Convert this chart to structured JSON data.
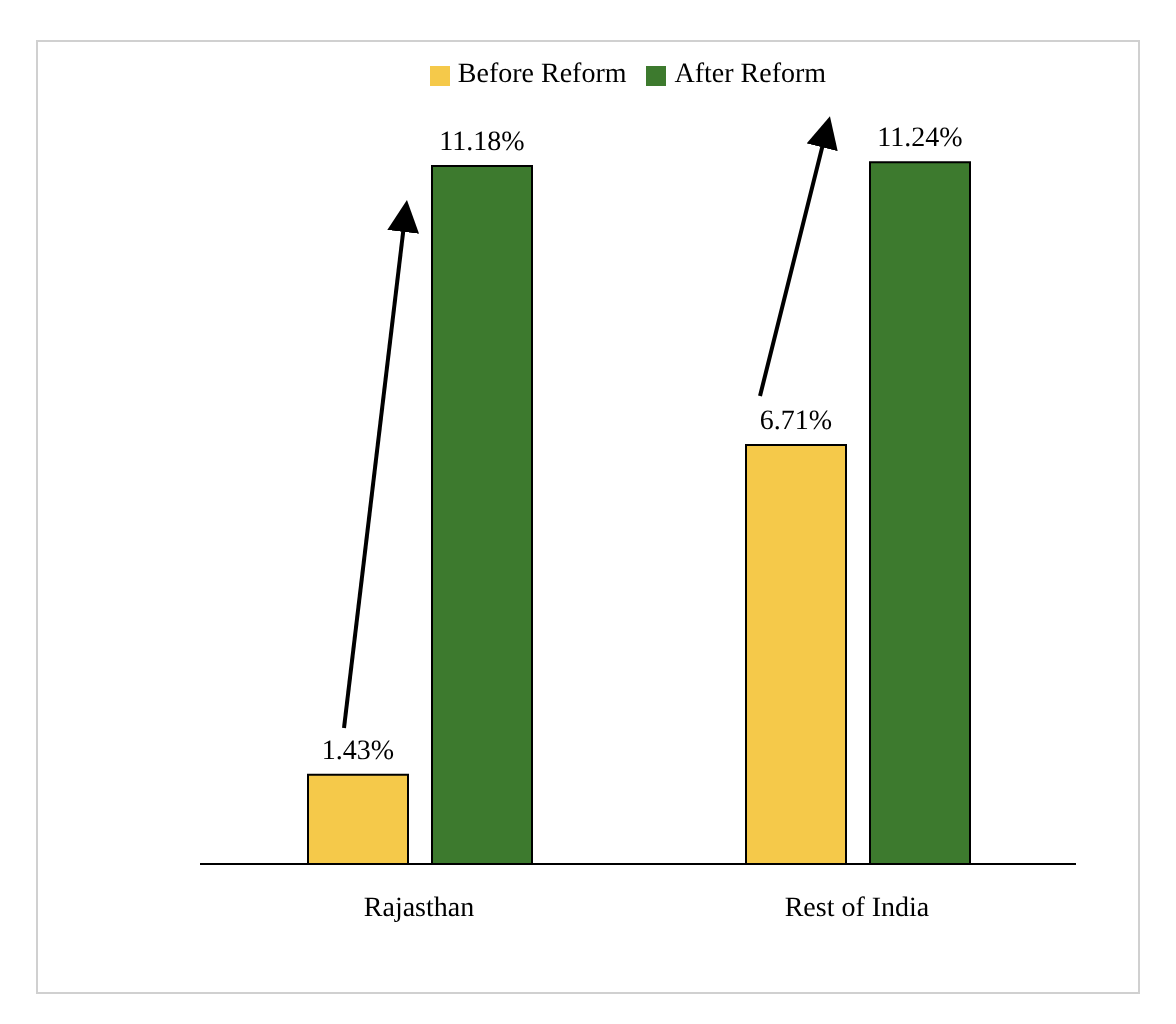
{
  "chart_data": {
    "type": "bar",
    "categories": [
      "Rajasthan",
      "Rest of India"
    ],
    "series": [
      {
        "name": "Before Reform",
        "color": "#f5c94a",
        "values": [
          1.43,
          6.71
        ],
        "value_labels": [
          "1.43%",
          "6.71%"
        ]
      },
      {
        "name": "After  Reform",
        "color": "#3d7a2e",
        "values": [
          11.18,
          11.24
        ],
        "value_labels": [
          "11.18%",
          "11.24%"
        ]
      }
    ],
    "legend": "top",
    "grid": false
  }
}
